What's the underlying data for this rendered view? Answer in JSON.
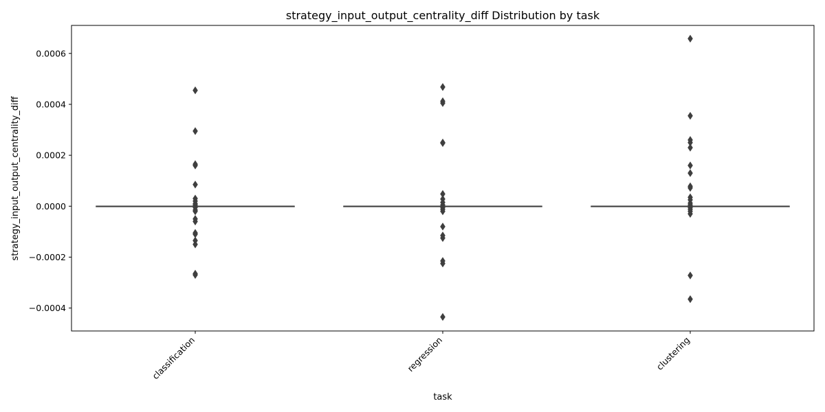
{
  "chart_data": {
    "type": "box",
    "title": "strategy_input_output_centrality_diff Distribution by task",
    "xlabel": "task",
    "ylabel": "strategy_input_output_centrality_diff",
    "ylim": [
      -0.00049,
      0.00071
    ],
    "yticks": [
      -0.0004,
      -0.0002,
      0.0,
      0.0002,
      0.0004,
      0.0006
    ],
    "ytick_labels": [
      "−0.0004",
      "−0.0002",
      "0.0000",
      "0.0002",
      "0.0004",
      "0.0006"
    ],
    "grid": false,
    "box_color": "#3f3f3f",
    "categories": [
      "classification",
      "regression",
      "clustering"
    ],
    "boxes": [
      {
        "category": "classification",
        "median": 0.0,
        "q1": 0.0,
        "q3": 0.0,
        "whisker_low": 0.0,
        "whisker_high": 0.0,
        "outliers": [
          0.000455,
          0.000295,
          0.000165,
          0.00016,
          8.5e-05,
          3e-05,
          2e-05,
          1e-05,
          5e-06,
          -5e-06,
          -1.5e-05,
          -2e-05,
          -5e-05,
          -6e-05,
          -0.000105,
          -0.00011,
          -0.000135,
          -0.00015,
          -0.000265,
          -0.00027
        ]
      },
      {
        "category": "regression",
        "median": 0.0,
        "q1": 0.0,
        "q3": 0.0,
        "whisker_low": 0.0,
        "whisker_high": 0.0,
        "outliers": [
          0.000468,
          0.000412,
          0.000405,
          0.00025,
          0.000248,
          4.8e-05,
          2.8e-05,
          1.5e-05,
          5e-06,
          -5e-06,
          -1.2e-05,
          -2e-05,
          -8e-05,
          -0.000115,
          -0.000125,
          -0.000215,
          -0.000225,
          -0.000435
        ]
      },
      {
        "category": "clustering",
        "median": 0.0,
        "q1": 0.0,
        "q3": 0.0,
        "whisker_low": 0.0,
        "whisker_high": 0.0,
        "outliers": [
          0.000658,
          0.000355,
          0.00026,
          0.00025,
          0.00023,
          0.00016,
          0.00013,
          7.8e-05,
          7.2e-05,
          3.5e-05,
          2.5e-05,
          1.2e-05,
          5e-06,
          -5e-06,
          -1.2e-05,
          -2e-05,
          -3e-05,
          -0.000272,
          -0.000365
        ]
      }
    ]
  }
}
